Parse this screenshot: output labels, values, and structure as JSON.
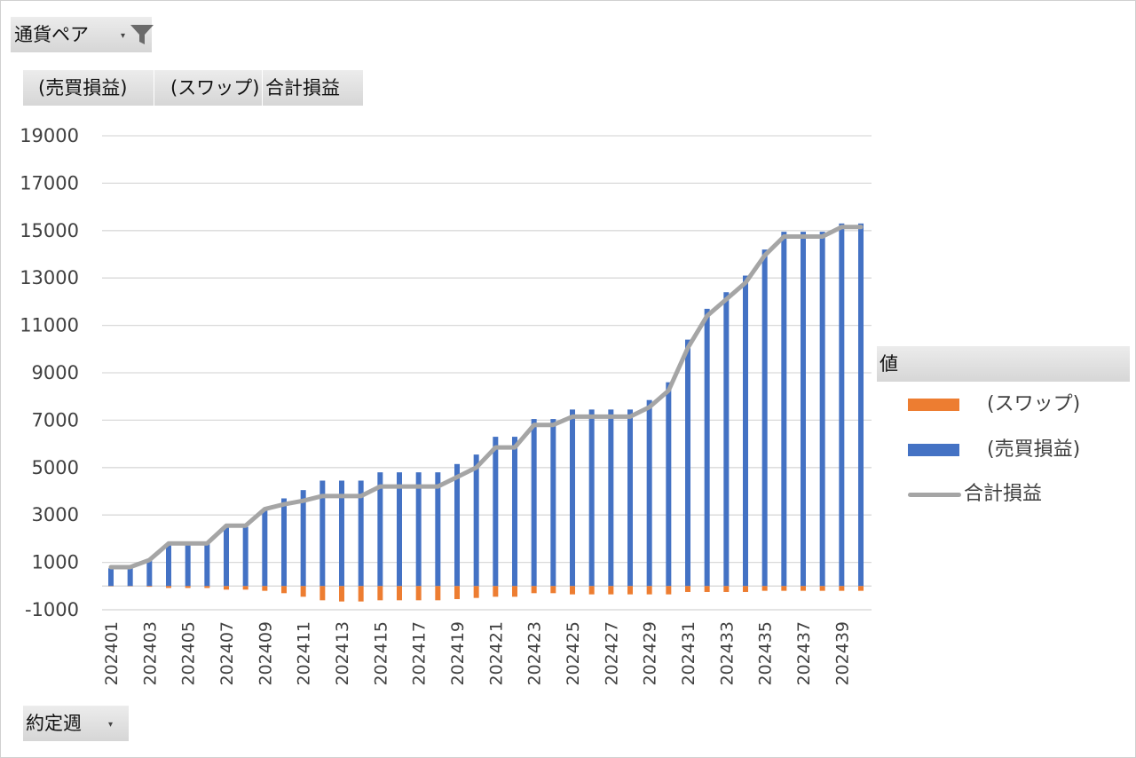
{
  "filters": {
    "currency_pair_label": "通貨ペア",
    "dropdown_glyph": "▾"
  },
  "legend_buttons": [
    "(売買損益)",
    "(スワップ)",
    "合計損益"
  ],
  "axis_field": {
    "label": "約定週"
  },
  "legend": {
    "header": "値",
    "entries": [
      {
        "name": "(スワップ)",
        "color": "#ED7D31",
        "kind": "bar"
      },
      {
        "name": "(売買損益)",
        "color": "#4472C4",
        "kind": "bar"
      },
      {
        "name": "合計損益",
        "color": "#A5A5A5",
        "kind": "line"
      }
    ]
  },
  "chart_data": {
    "type": "bar",
    "stacked": true,
    "categories": [
      "202401",
      "202402",
      "202403",
      "202404",
      "202405",
      "202406",
      "202407",
      "202408",
      "202409",
      "202410",
      "202411",
      "202412",
      "202413",
      "202414",
      "202415",
      "202416",
      "202417",
      "202418",
      "202419",
      "202420",
      "202421",
      "202422",
      "202423",
      "202424",
      "202425",
      "202426",
      "202427",
      "202428",
      "202429",
      "202430",
      "202431",
      "202432",
      "202433",
      "202434",
      "202435",
      "202436",
      "202437",
      "202438",
      "202439",
      "202440"
    ],
    "x_tick_labels": [
      "202401",
      "202403",
      "202405",
      "202407",
      "202409",
      "202411",
      "202413",
      "202415",
      "202417",
      "202419",
      "202421",
      "202423",
      "202425",
      "202427",
      "202429",
      "202431",
      "202433",
      "202435",
      "202437",
      "202439"
    ],
    "series": [
      {
        "name": "(売買損益)",
        "color": "#4472C4",
        "values": [
          750,
          750,
          1100,
          1800,
          1800,
          1800,
          2500,
          2500,
          3250,
          3700,
          4050,
          4450,
          4450,
          4450,
          4800,
          4800,
          4800,
          4800,
          5150,
          5550,
          6300,
          6300,
          7050,
          7050,
          7450,
          7450,
          7450,
          7450,
          7850,
          8600,
          10400,
          11700,
          12400,
          13100,
          14200,
          14950,
          14950,
          14950,
          15300,
          15300
        ]
      },
      {
        "name": "(スワップ)",
        "color": "#ED7D31",
        "values": [
          -10,
          -10,
          -30,
          -80,
          -80,
          -80,
          -150,
          -150,
          -200,
          -300,
          -450,
          -600,
          -650,
          -650,
          -600,
          -600,
          -600,
          -600,
          -550,
          -500,
          -450,
          -450,
          -300,
          -300,
          -350,
          -350,
          -350,
          -350,
          -350,
          -350,
          -250,
          -250,
          -250,
          -250,
          -200,
          -200,
          -200,
          -200,
          -200,
          -200
        ]
      },
      {
        "name": "合計損益",
        "type": "line",
        "color": "#A5A5A5",
        "values": [
          800,
          800,
          1100,
          1800,
          1800,
          1800,
          2550,
          2550,
          3250,
          3450,
          3600,
          3800,
          3800,
          3800,
          4200,
          4200,
          4200,
          4200,
          4600,
          5000,
          5850,
          5850,
          6800,
          6800,
          7150,
          7150,
          7150,
          7150,
          7550,
          8250,
          10050,
          11400,
          12100,
          12800,
          13950,
          14750,
          14750,
          14750,
          15150,
          15150
        ]
      }
    ],
    "y_ticks": [
      -1000,
      1000,
      3000,
      5000,
      7000,
      9000,
      11000,
      13000,
      15000,
      17000,
      19000
    ],
    "ylim": [
      -1000,
      19000
    ],
    "grid": true,
    "legend_position": "right"
  }
}
